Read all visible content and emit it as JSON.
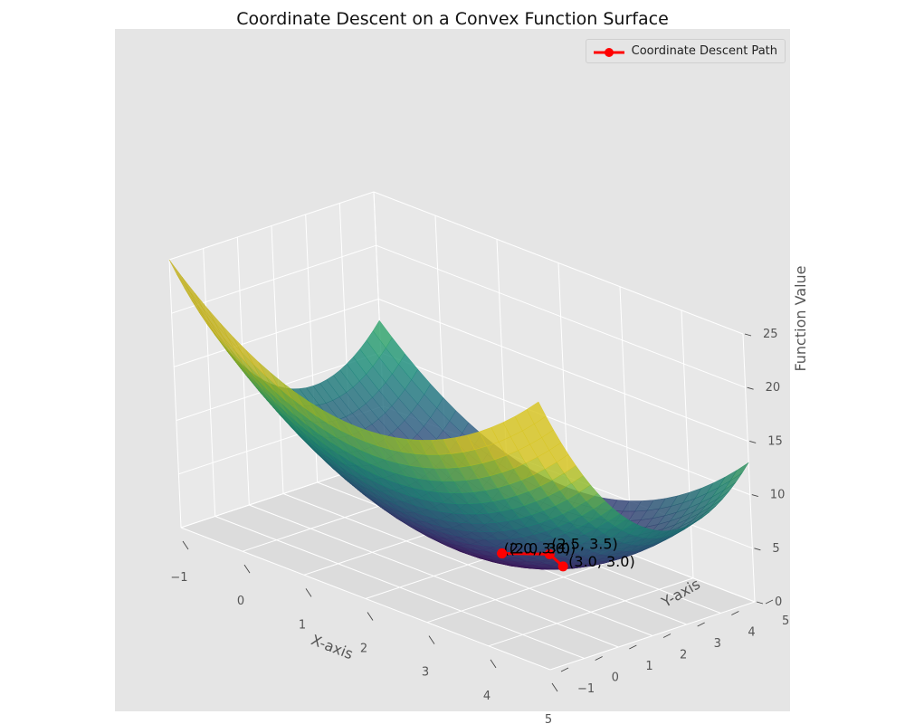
{
  "chart_data": {
    "type": "surface",
    "title": "Coordinate Descent on a Convex Function Surface",
    "xlabel": "X-axis",
    "ylabel": "Y-axis",
    "zlabel": "Function Value",
    "xlim": [
      -1,
      5
    ],
    "ylim": [
      -1,
      5
    ],
    "zlim": [
      0,
      25
    ],
    "x_ticks": [
      "−1",
      "0",
      "1",
      "2",
      "3",
      "4",
      "5"
    ],
    "y_ticks": [
      "−1",
      "0",
      "1",
      "2",
      "3",
      "4",
      "5"
    ],
    "z_ticks": [
      "0",
      "5",
      "10",
      "15",
      "20",
      "25"
    ],
    "surface": {
      "function": "(x-2)^2 + (y-3)^2",
      "colormap": "viridis"
    },
    "series": [
      {
        "name": "Coordinate Descent Path",
        "color": "#ff0000",
        "points": [
          {
            "x": 3.0,
            "y": 3.0,
            "z": 1.0,
            "label": "(3.0, 3.0)"
          },
          {
            "x": 2.5,
            "y": 3.5,
            "z": 0.5,
            "label": "(2.5, 3.5)"
          },
          {
            "x": 2.0,
            "y": 3.0,
            "z": 0.0,
            "label": "(2.0, 3.0)"
          },
          {
            "x": 2.0,
            "y": 3.0,
            "z": 0.0,
            "label": "(2.0, 3.0)"
          }
        ]
      }
    ],
    "legend_position": "top-right",
    "grid": true
  }
}
